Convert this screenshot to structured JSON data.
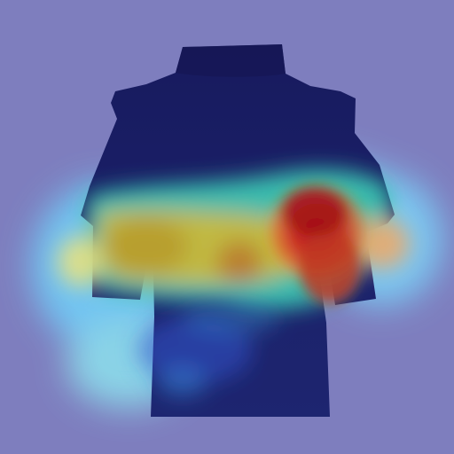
{
  "image": {
    "subject": "turtleneck-sweater",
    "overlay": "attention-heatmap",
    "colors": {
      "background": "#7f7fbf",
      "garment": "#0d1258",
      "garment_shadow": "#07093f",
      "heat_peak": "#c00000",
      "heat_high": "#f04020",
      "heat_warm": "#f2b020",
      "heat_mid": "#3fd0a0",
      "heat_low": "#2f6fe6",
      "heat_min": "#0a1f9a"
    }
  }
}
